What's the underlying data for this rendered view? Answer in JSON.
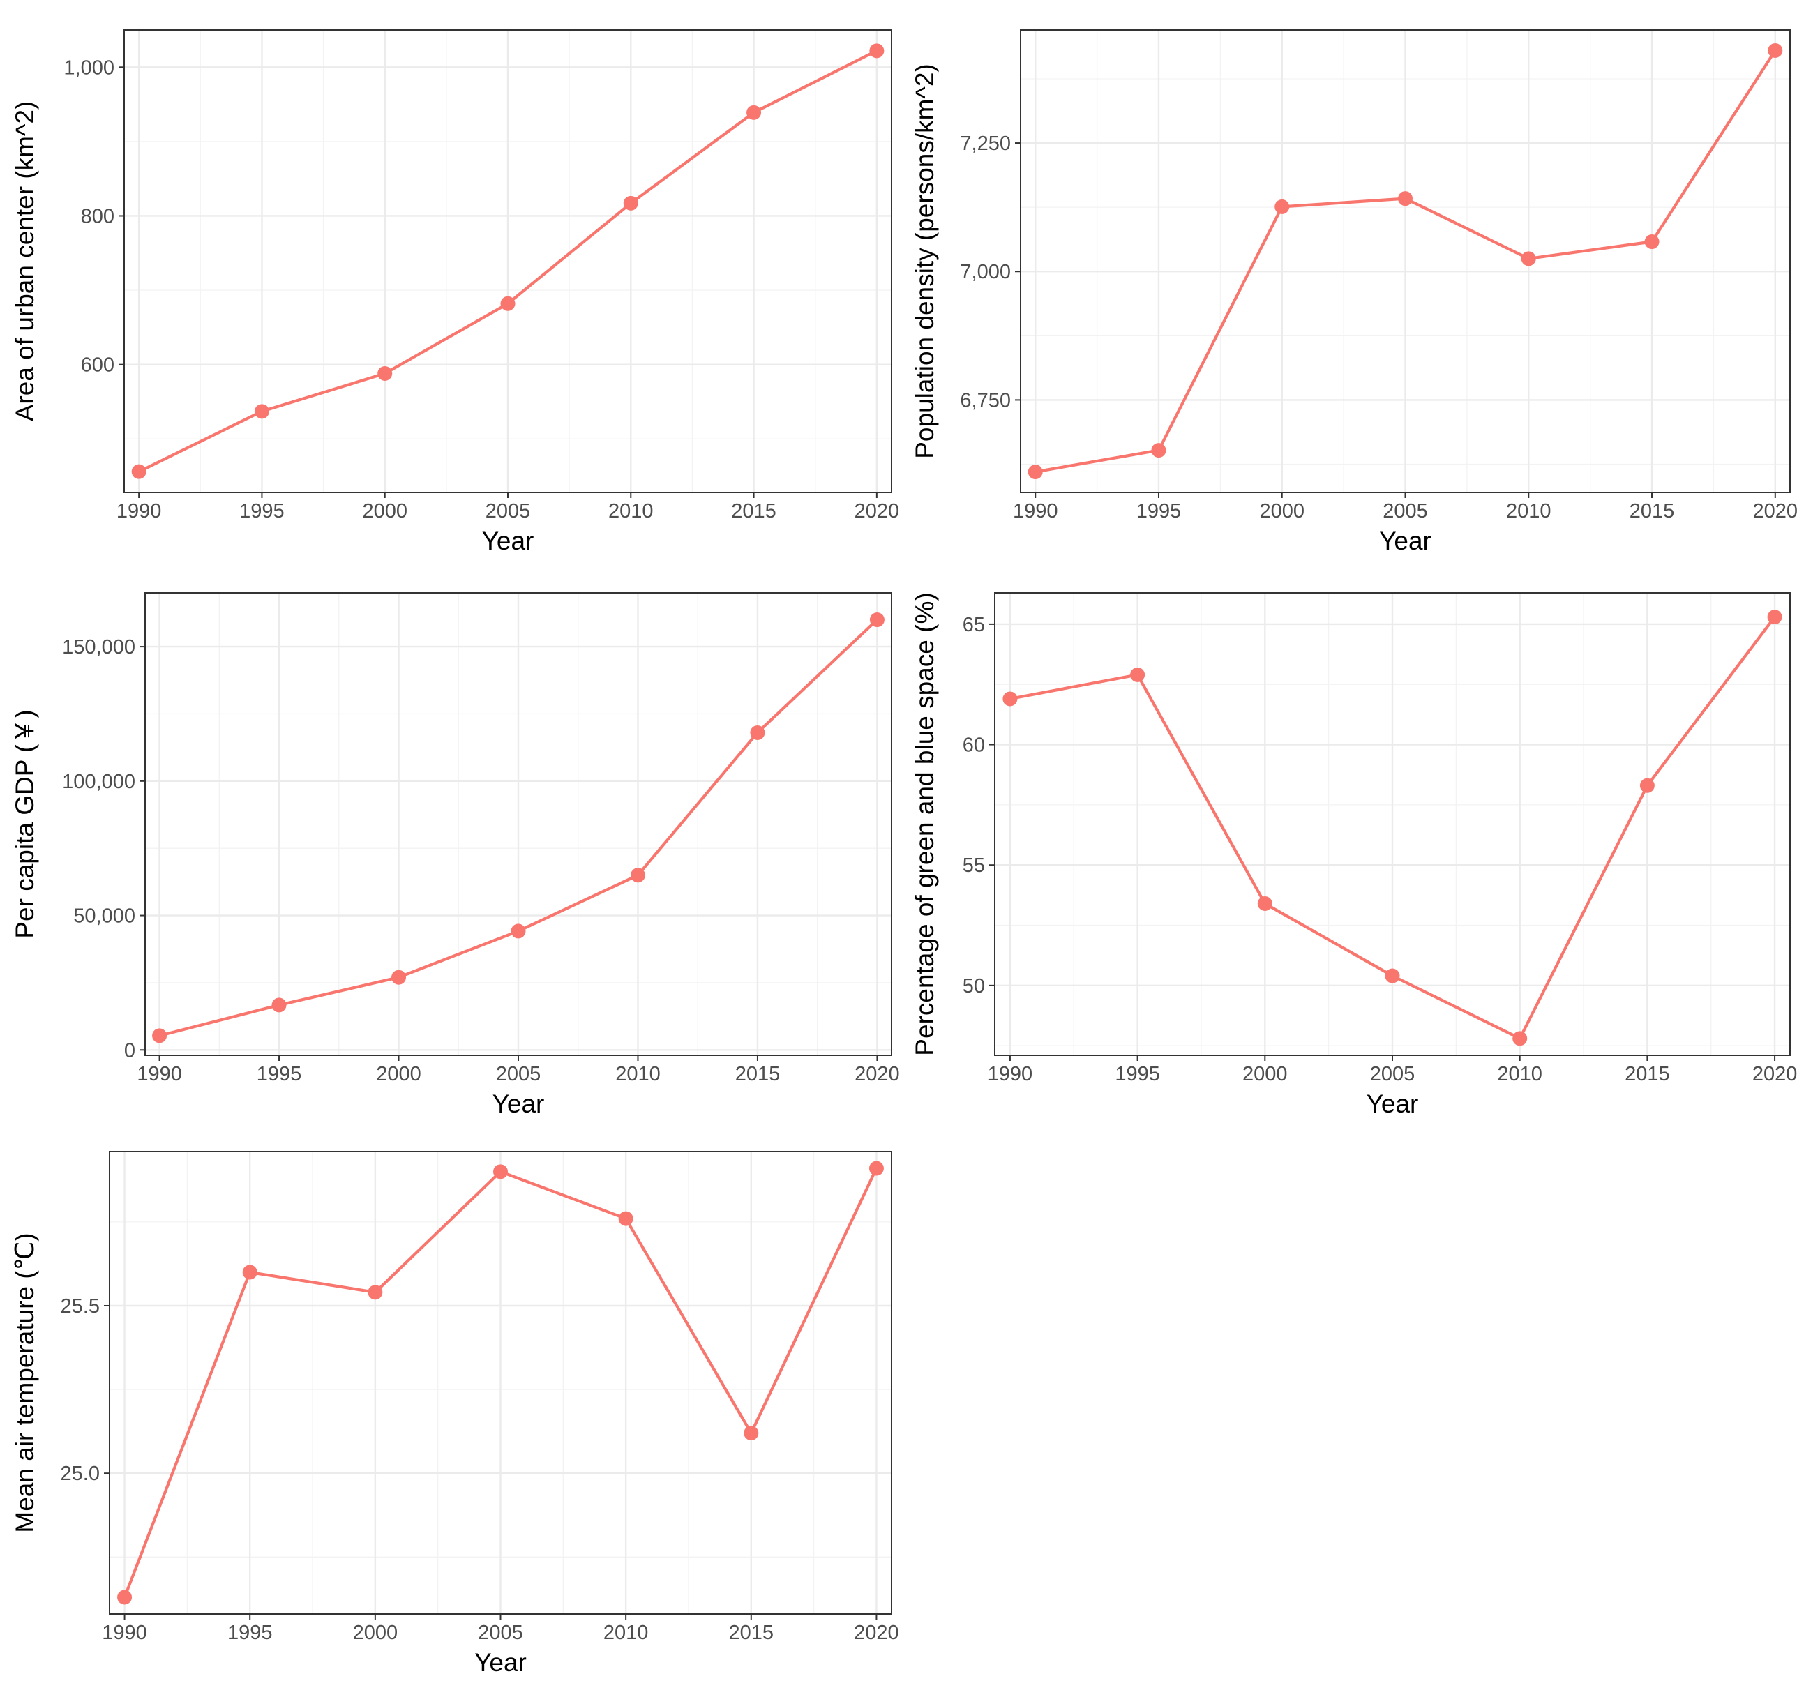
{
  "colors": {
    "series": "#F8766D",
    "grid": "#EBEBEB",
    "border": "#333333",
    "tick_text": "#4D4D4D"
  },
  "chart_data": [
    {
      "type": "line",
      "xlabel": "Year",
      "ylabel": "Area of urban center (km^2)",
      "x": [
        1990,
        1995,
        2000,
        2005,
        2010,
        2015,
        2020
      ],
      "y": [
        456,
        537,
        588,
        682,
        817,
        939,
        1022
      ],
      "xlim": [
        1989.4,
        2020.6
      ],
      "ylim": [
        428,
        1050
      ],
      "xticks": [
        1990,
        1995,
        2000,
        2005,
        2010,
        2015,
        2020
      ],
      "xtick_labels": [
        "1990",
        "1995",
        "2000",
        "2005",
        "2010",
        "2015",
        "2020"
      ],
      "yticks": [
        600,
        800,
        1000
      ],
      "ytick_labels": [
        "600",
        "800",
        "1,000"
      ],
      "grid": true,
      "legend": "none"
    },
    {
      "type": "line",
      "xlabel": "Year",
      "ylabel": "Population density (persons/km^2)",
      "x": [
        1990,
        1995,
        2000,
        2005,
        2010,
        2015,
        2020
      ],
      "y": [
        6610,
        6652,
        7126,
        7142,
        7025,
        7058,
        7430
      ],
      "xlim": [
        1989.4,
        2020.6
      ],
      "ylim": [
        6570,
        7470
      ],
      "xticks": [
        1990,
        1995,
        2000,
        2005,
        2010,
        2015,
        2020
      ],
      "xtick_labels": [
        "1990",
        "1995",
        "2000",
        "2005",
        "2010",
        "2015",
        "2020"
      ],
      "yticks": [
        6750,
        7000,
        7250
      ],
      "ytick_labels": [
        "6,750",
        "7,000",
        "7,250"
      ],
      "grid": true,
      "legend": "none"
    },
    {
      "type": "line",
      "xlabel": "Year",
      "ylabel": "Per capita GDP (￥)",
      "x": [
        1990,
        1995,
        2000,
        2005,
        2010,
        2015,
        2020
      ],
      "y": [
        5300,
        16700,
        27000,
        44200,
        65000,
        118000,
        160000
      ],
      "xlim": [
        1989.4,
        2020.6
      ],
      "ylim": [
        -2000,
        170000
      ],
      "xticks": [
        1990,
        1995,
        2000,
        2005,
        2010,
        2015,
        2020
      ],
      "xtick_labels": [
        "1990",
        "1995",
        "2000",
        "2005",
        "2010",
        "2015",
        "2020"
      ],
      "yticks": [
        0,
        50000,
        100000,
        150000
      ],
      "ytick_labels": [
        "0",
        "50,000",
        "100,000",
        "150,000"
      ],
      "grid": true,
      "legend": "none"
    },
    {
      "type": "line",
      "xlabel": "Year",
      "ylabel": "Percentage of green and blue space (%)",
      "x": [
        1990,
        1995,
        2000,
        2005,
        2010,
        2015,
        2020
      ],
      "y": [
        61.9,
        62.9,
        53.4,
        50.4,
        47.8,
        58.3,
        65.3
      ],
      "xlim": [
        1989.4,
        2020.6
      ],
      "ylim": [
        47.1,
        66.3
      ],
      "xticks": [
        1990,
        1995,
        2000,
        2005,
        2010,
        2015,
        2020
      ],
      "xtick_labels": [
        "1990",
        "1995",
        "2000",
        "2005",
        "2010",
        "2015",
        "2020"
      ],
      "yticks": [
        50,
        55,
        60,
        65
      ],
      "ytick_labels": [
        "50",
        "55",
        "60",
        "65"
      ],
      "grid": true,
      "legend": "none"
    },
    {
      "type": "line",
      "xlabel": "Year",
      "ylabel": "Mean air temperature (℃)",
      "x": [
        1990,
        1995,
        2000,
        2005,
        2010,
        2015,
        2020
      ],
      "y": [
        24.63,
        25.6,
        25.54,
        25.9,
        25.76,
        25.12,
        25.91
      ],
      "xlim": [
        1989.4,
        2020.6
      ],
      "ylim": [
        24.58,
        25.96
      ],
      "xticks": [
        1990,
        1995,
        2000,
        2005,
        2010,
        2015,
        2020
      ],
      "xtick_labels": [
        "1990",
        "1995",
        "2000",
        "2005",
        "2010",
        "2015",
        "2020"
      ],
      "yticks": [
        25.0,
        25.5
      ],
      "ytick_labels": [
        "25.0",
        "25.5"
      ],
      "grid": true,
      "legend": "none"
    }
  ]
}
